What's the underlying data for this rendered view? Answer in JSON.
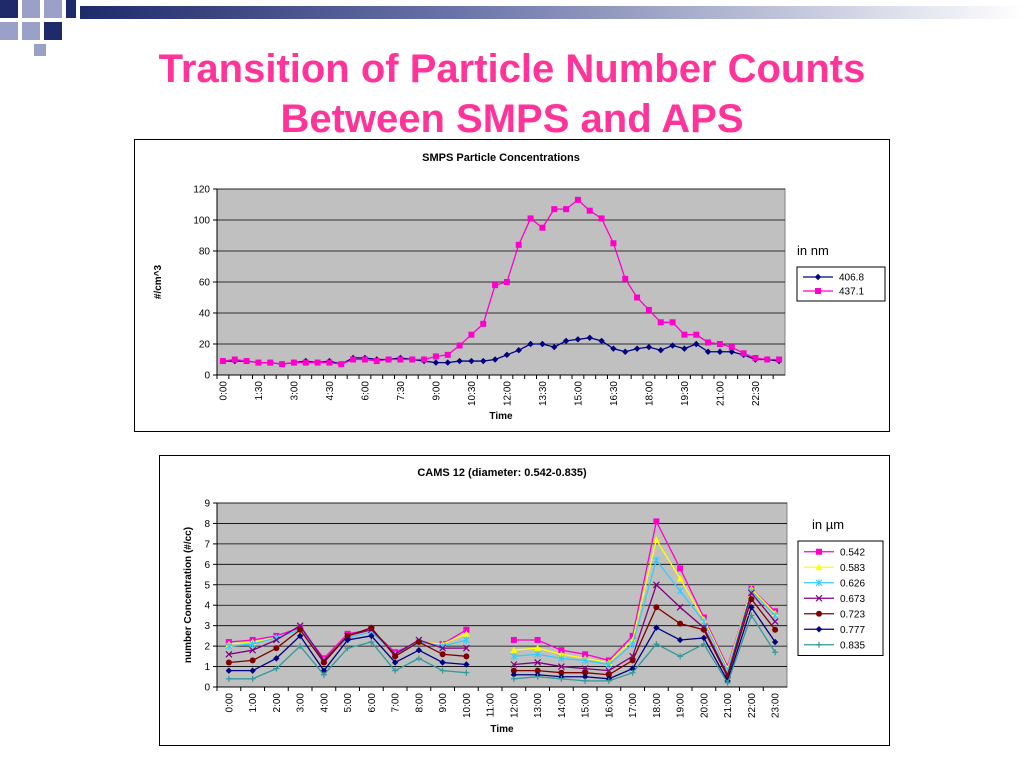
{
  "slide": {
    "title_line1": "Transition of Particle Number Counts",
    "title_line2": "Between SMPS and APS",
    "colors": {
      "title": "#ff3399",
      "deco_dark": "#1f2a6b",
      "deco_light": "#9aa0c8",
      "plot_bg": "#c0c0c0"
    }
  },
  "chart_data": [
    {
      "type": "line",
      "title": "SMPS Particle Concentrations",
      "xlabel": "Time",
      "ylabel": "#/cm^3",
      "ylim": [
        0,
        120
      ],
      "yticks": [
        0,
        20,
        40,
        60,
        80,
        100,
        120
      ],
      "annotation": "in nm",
      "legend_position": "right",
      "grid": true,
      "x": [
        "0:00",
        "0:30",
        "1:00",
        "1:30",
        "2:00",
        "2:30",
        "3:00",
        "3:30",
        "4:00",
        "4:30",
        "5:00",
        "5:30",
        "6:00",
        "6:30",
        "7:00",
        "7:30",
        "8:00",
        "8:30",
        "9:00",
        "9:30",
        "10:00",
        "10:30",
        "11:00",
        "11:30",
        "12:00",
        "12:30",
        "13:00",
        "13:30",
        "14:00",
        "14:30",
        "15:00",
        "15:30",
        "16:00",
        "16:30",
        "17:00",
        "17:30",
        "18:00",
        "18:30",
        "19:00",
        "19:30",
        "20:00",
        "20:30",
        "21:00",
        "21:30",
        "22:00",
        "22:30",
        "23:00",
        "23:30"
      ],
      "xtick_labels": [
        "0:00",
        "1:30",
        "3:00",
        "4:30",
        "6:00",
        "7:30",
        "9:00",
        "10:30",
        "12:00",
        "13:30",
        "15:00",
        "16:30",
        "18:00",
        "19:30",
        "21:00",
        "22:30"
      ],
      "series": [
        {
          "name": "406.8",
          "color": "#000080",
          "marker": "diamond",
          "values": [
            9,
            9,
            9,
            8,
            8,
            7,
            8,
            9,
            8,
            9,
            7,
            11,
            11,
            10,
            10,
            11,
            10,
            9,
            8,
            8,
            9,
            9,
            9,
            10,
            13,
            16,
            20,
            20,
            18,
            22,
            23,
            24,
            22,
            17,
            15,
            17,
            18,
            16,
            19,
            17,
            20,
            15,
            15,
            15,
            13,
            10,
            10,
            9
          ]
        },
        {
          "name": "437.1",
          "color": "#ff00cc",
          "marker": "square",
          "values": [
            9,
            10,
            9,
            8,
            8,
            7,
            8,
            8,
            8,
            8,
            7,
            10,
            10,
            9,
            10,
            10,
            10,
            10,
            12,
            13,
            19,
            26,
            33,
            58,
            60,
            84,
            101,
            95,
            107,
            107,
            113,
            106,
            101,
            85,
            62,
            50,
            42,
            34,
            34,
            26,
            26,
            21,
            20,
            18,
            14,
            11,
            10,
            10
          ]
        }
      ]
    },
    {
      "type": "line",
      "title": "CAMS 12 (diameter: 0.542-0.835)",
      "xlabel": "Time",
      "ylabel": "number Concentration (#/cc)",
      "ylim": [
        0,
        9
      ],
      "yticks": [
        0,
        1,
        2,
        3,
        4,
        5,
        6,
        7,
        8,
        9
      ],
      "annotation": "in µm",
      "legend_position": "right",
      "grid": true,
      "x": [
        "0:00",
        "1:00",
        "2:00",
        "3:00",
        "4:00",
        "5:00",
        "6:00",
        "7:00",
        "8:00",
        "9:00",
        "10:00",
        "11:00",
        "12:00",
        "13:00",
        "14:00",
        "15:00",
        "16:00",
        "17:00",
        "18:00",
        "19:00",
        "20:00",
        "21:00",
        "22:00",
        "23:00"
      ],
      "series": [
        {
          "name": "0.542",
          "color": "#ff00cc",
          "marker": "square",
          "values": [
            2.2,
            2.3,
            2.5,
            2.9,
            1.4,
            2.6,
            2.8,
            1.7,
            2.2,
            2.1,
            2.8,
            null,
            2.3,
            2.3,
            1.8,
            1.6,
            1.3,
            2.5,
            8.1,
            5.8,
            3.4,
            1.0,
            4.8,
            3.7
          ]
        },
        {
          "name": "0.583",
          "color": "#ffff00",
          "marker": "triangle",
          "values": [
            2.1,
            2.2,
            2.4,
            2.8,
            1.3,
            2.5,
            2.8,
            1.6,
            2.2,
            2.1,
            2.6,
            null,
            1.8,
            1.9,
            1.6,
            1.4,
            1.2,
            2.3,
            7.2,
            5.3,
            3.3,
            0.9,
            4.8,
            3.6
          ]
        },
        {
          "name": "0.626",
          "color": "#33ccff",
          "marker": "star",
          "values": [
            2.0,
            2.1,
            2.4,
            2.8,
            1.3,
            2.4,
            2.7,
            1.6,
            2.2,
            2.0,
            2.3,
            null,
            1.5,
            1.6,
            1.4,
            1.3,
            1.1,
            2.1,
            6.2,
            4.7,
            3.2,
            0.8,
            4.7,
            3.5
          ]
        },
        {
          "name": "0.673",
          "color": "#800080",
          "marker": "x",
          "values": [
            1.6,
            1.8,
            2.3,
            3.0,
            1.3,
            2.5,
            2.8,
            1.6,
            2.3,
            1.9,
            1.9,
            null,
            1.1,
            1.2,
            1.0,
            0.9,
            0.8,
            1.5,
            5.0,
            3.9,
            2.9,
            0.6,
            4.6,
            3.2
          ]
        },
        {
          "name": "0.723",
          "color": "#800000",
          "marker": "circle",
          "values": [
            1.2,
            1.3,
            1.9,
            2.8,
            1.2,
            2.5,
            2.9,
            1.5,
            2.2,
            1.6,
            1.5,
            null,
            0.8,
            0.8,
            0.7,
            0.7,
            0.6,
            1.3,
            3.9,
            3.1,
            2.8,
            0.5,
            4.3,
            2.8
          ]
        },
        {
          "name": "0.777",
          "color": "#000080",
          "marker": "diamond",
          "values": [
            0.8,
            0.8,
            1.4,
            2.5,
            0.8,
            2.3,
            2.5,
            1.2,
            1.8,
            1.2,
            1.1,
            null,
            0.6,
            0.6,
            0.5,
            0.5,
            0.4,
            0.9,
            2.9,
            2.3,
            2.4,
            0.3,
            3.9,
            2.2
          ]
        },
        {
          "name": "0.835",
          "color": "#339999",
          "marker": "plus",
          "values": [
            0.4,
            0.4,
            0.9,
            2.0,
            0.6,
            1.9,
            2.2,
            0.8,
            1.4,
            0.8,
            0.7,
            null,
            0.4,
            0.5,
            0.4,
            0.3,
            0.3,
            0.7,
            2.1,
            1.5,
            2.1,
            0.2,
            3.5,
            1.7
          ]
        }
      ]
    }
  ]
}
